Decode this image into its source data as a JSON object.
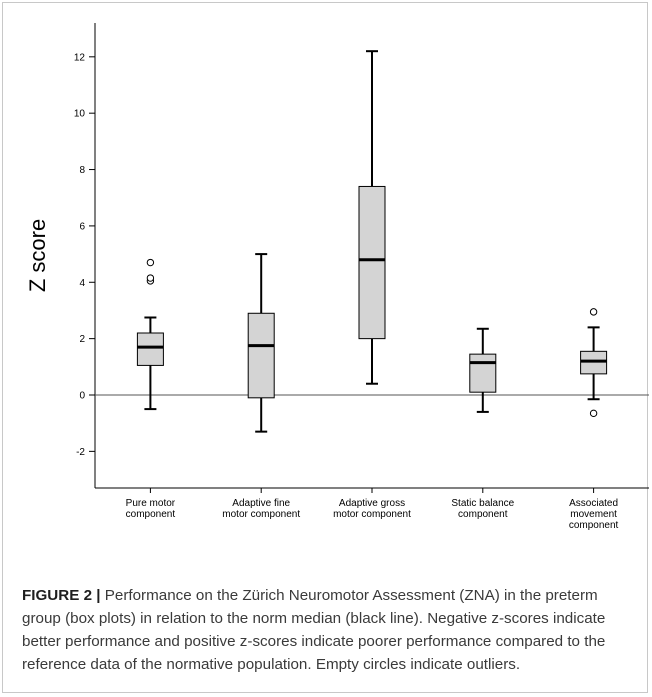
{
  "chart_data": {
    "type": "boxplot",
    "ylabel": "Z score",
    "ylim": [
      -3.3,
      13.2
    ],
    "yticks": [
      -2,
      0,
      2,
      4,
      6,
      8,
      10,
      12
    ],
    "reference_line": 0,
    "categories": [
      [
        "Pure motor",
        "component"
      ],
      [
        "Adaptive fine",
        "motor component"
      ],
      [
        "Adaptive gross",
        "motor component"
      ],
      [
        "Static balance",
        "component"
      ],
      [
        "Associated",
        "movement",
        "component"
      ]
    ],
    "boxes": [
      {
        "whisker_low": -0.5,
        "q1": 1.05,
        "median": 1.7,
        "q3": 2.2,
        "whisker_high": 2.75,
        "outliers": [
          4.05,
          4.15,
          4.7
        ]
      },
      {
        "whisker_low": -1.3,
        "q1": -0.1,
        "median": 1.75,
        "q3": 2.9,
        "whisker_high": 5.0,
        "outliers": []
      },
      {
        "whisker_low": 0.4,
        "q1": 2.0,
        "median": 4.8,
        "q3": 7.4,
        "whisker_high": 12.2,
        "outliers": []
      },
      {
        "whisker_low": -0.6,
        "q1": 0.1,
        "median": 1.15,
        "q3": 1.45,
        "whisker_high": 2.35,
        "outliers": []
      },
      {
        "whisker_low": -0.15,
        "q1": 0.75,
        "median": 1.2,
        "q3": 1.55,
        "whisker_high": 2.4,
        "outliers": [
          2.95,
          -0.65
        ]
      }
    ],
    "colors": {
      "box_fill": "#d4d4d4",
      "stroke": "#000000"
    }
  },
  "caption": {
    "label": "FIGURE 2 |",
    "text": "Performance on the Zürich Neuromotor Assessment (ZNA) in the preterm group (box plots) in relation to the norm median (black line). Negative z-scores indicate better performance and positive z-scores indicate poorer performance compared to the reference data of the normative population. Empty circles indicate outliers."
  }
}
